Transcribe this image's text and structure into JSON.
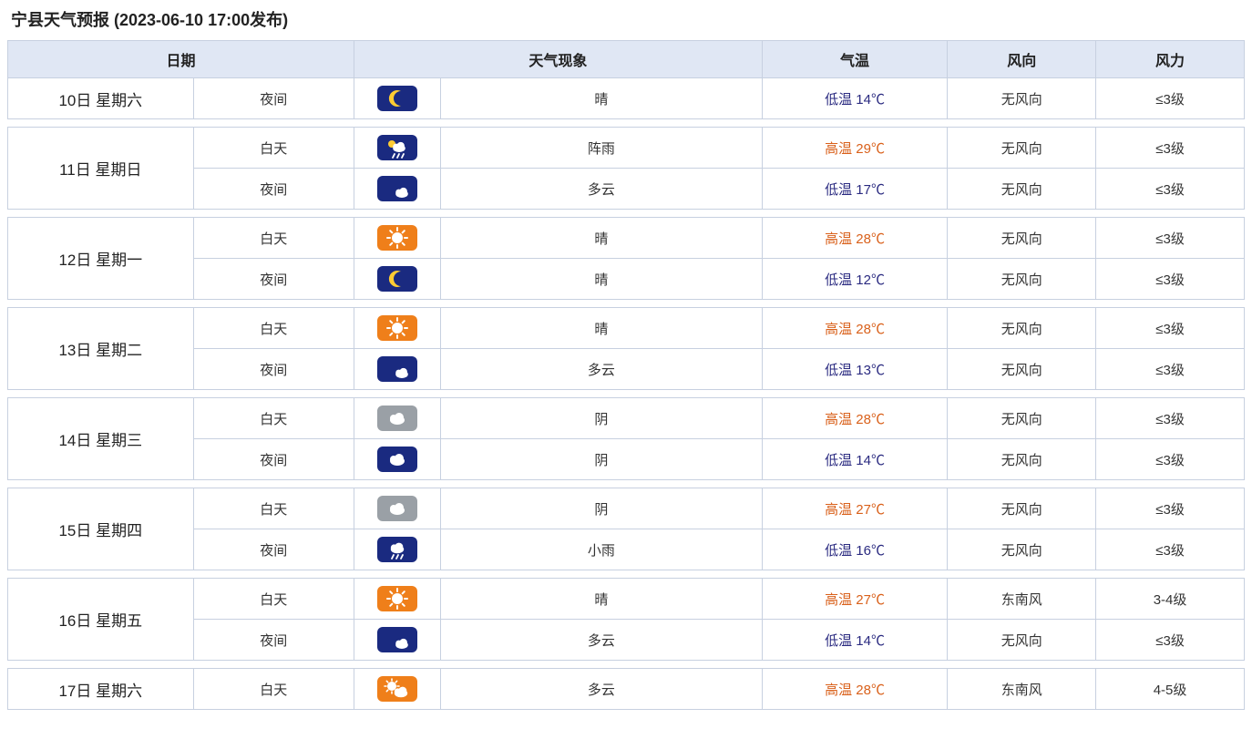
{
  "title": "宁县天气预报 (2023-06-10 17:00发布)",
  "colors": {
    "header_bg": "#e0e7f4",
    "border": "#c7d0e0",
    "text": "#333333",
    "high_temp": "#d9601a",
    "low_temp": "#2a2a80",
    "icon_day_bg": "#ef7f1a",
    "icon_night_bg": "#1a2a80",
    "icon_gray_bg": "#9aa0a6",
    "icon_fg": "#ffffff",
    "moon_fill": "#ffcc33",
    "sun_fill": "#ffffff"
  },
  "headers": {
    "date": "日期",
    "weather": "天气现象",
    "temp": "气温",
    "wind_dir": "风向",
    "wind_scale": "风力"
  },
  "icon_size": {
    "w": 44,
    "h": 28,
    "rx": 6
  },
  "days": [
    {
      "date": "10日 星期六",
      "rows": [
        {
          "period": "夜间",
          "icon": "moon",
          "condition": "晴",
          "temp_label": "低温 14℃",
          "temp_type": "low",
          "wind_dir": "无风向",
          "wind_scale": "≤3级"
        }
      ]
    },
    {
      "date": "11日 星期日",
      "rows": [
        {
          "period": "白天",
          "icon": "rain-day",
          "condition": "阵雨",
          "temp_label": "高温 29℃",
          "temp_type": "high",
          "wind_dir": "无风向",
          "wind_scale": "≤3级"
        },
        {
          "period": "夜间",
          "icon": "moon-cloud",
          "condition": "多云",
          "temp_label": "低温 17℃",
          "temp_type": "low",
          "wind_dir": "无风向",
          "wind_scale": "≤3级"
        }
      ]
    },
    {
      "date": "12日 星期一",
      "rows": [
        {
          "period": "白天",
          "icon": "sun",
          "condition": "晴",
          "temp_label": "高温 28℃",
          "temp_type": "high",
          "wind_dir": "无风向",
          "wind_scale": "≤3级"
        },
        {
          "period": "夜间",
          "icon": "moon",
          "condition": "晴",
          "temp_label": "低温 12℃",
          "temp_type": "low",
          "wind_dir": "无风向",
          "wind_scale": "≤3级"
        }
      ]
    },
    {
      "date": "13日 星期二",
      "rows": [
        {
          "period": "白天",
          "icon": "sun",
          "condition": "晴",
          "temp_label": "高温 28℃",
          "temp_type": "high",
          "wind_dir": "无风向",
          "wind_scale": "≤3级"
        },
        {
          "period": "夜间",
          "icon": "moon-cloud",
          "condition": "多云",
          "temp_label": "低温 13℃",
          "temp_type": "low",
          "wind_dir": "无风向",
          "wind_scale": "≤3级"
        }
      ]
    },
    {
      "date": "14日 星期三",
      "rows": [
        {
          "period": "白天",
          "icon": "cloud-gray",
          "condition": "阴",
          "temp_label": "高温 28℃",
          "temp_type": "high",
          "wind_dir": "无风向",
          "wind_scale": "≤3级"
        },
        {
          "period": "夜间",
          "icon": "cloud-night",
          "condition": "阴",
          "temp_label": "低温 14℃",
          "temp_type": "low",
          "wind_dir": "无风向",
          "wind_scale": "≤3级"
        }
      ]
    },
    {
      "date": "15日 星期四",
      "rows": [
        {
          "period": "白天",
          "icon": "cloud-gray",
          "condition": "阴",
          "temp_label": "高温 27℃",
          "temp_type": "high",
          "wind_dir": "无风向",
          "wind_scale": "≤3级"
        },
        {
          "period": "夜间",
          "icon": "rain-night",
          "condition": "小雨",
          "temp_label": "低温 16℃",
          "temp_type": "low",
          "wind_dir": "无风向",
          "wind_scale": "≤3级"
        }
      ]
    },
    {
      "date": "16日 星期五",
      "rows": [
        {
          "period": "白天",
          "icon": "sun",
          "condition": "晴",
          "temp_label": "高温 27℃",
          "temp_type": "high",
          "wind_dir": "东南风",
          "wind_scale": "3-4级"
        },
        {
          "period": "夜间",
          "icon": "moon-cloud",
          "condition": "多云",
          "temp_label": "低温 14℃",
          "temp_type": "low",
          "wind_dir": "无风向",
          "wind_scale": "≤3级"
        }
      ]
    },
    {
      "date": "17日 星期六",
      "rows": [
        {
          "period": "白天",
          "icon": "sun-cloud",
          "condition": "多云",
          "temp_label": "高温 28℃",
          "temp_type": "high",
          "wind_dir": "东南风",
          "wind_scale": "4-5级"
        }
      ]
    }
  ]
}
